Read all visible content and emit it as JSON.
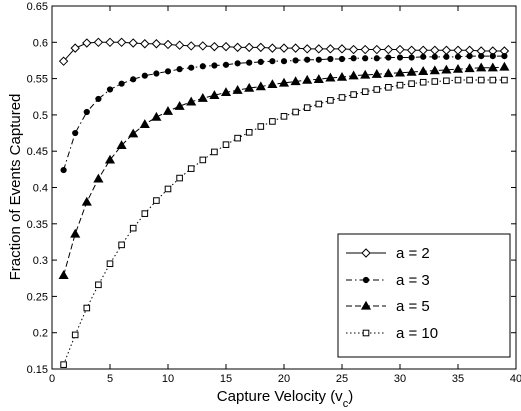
{
  "chart_data": {
    "type": "line",
    "title": "",
    "xlabel": "Capture Velocity (v",
    "xlabel_sub": "c",
    "xlabel_close": ")",
    "ylabel": "Fraction of Events Captured",
    "xlim": [
      0,
      40
    ],
    "ylim": [
      0.15,
      0.65
    ],
    "xticks": [
      0,
      5,
      10,
      15,
      20,
      25,
      30,
      35,
      40
    ],
    "yticks": [
      0.15,
      0.2,
      0.25,
      0.3,
      0.35,
      0.4,
      0.45,
      0.5,
      0.55,
      0.6,
      0.65
    ],
    "grid": false,
    "legend_position": "lower-right",
    "x": [
      1,
      2,
      3,
      4,
      5,
      6,
      7,
      8,
      9,
      10,
      11,
      12,
      13,
      14,
      15,
      16,
      17,
      18,
      19,
      20,
      21,
      22,
      23,
      24,
      25,
      26,
      27,
      28,
      29,
      30,
      31,
      32,
      33,
      34,
      35,
      36,
      37,
      38,
      39
    ],
    "series": [
      {
        "name": "a = 2",
        "marker": "diamond",
        "line": "solid",
        "values": [
          0.574,
          0.592,
          0.599,
          0.6,
          0.6,
          0.6,
          0.599,
          0.598,
          0.598,
          0.597,
          0.596,
          0.595,
          0.595,
          0.594,
          0.594,
          0.593,
          0.593,
          0.593,
          0.592,
          0.592,
          0.592,
          0.591,
          0.591,
          0.591,
          0.591,
          0.59,
          0.59,
          0.59,
          0.59,
          0.59,
          0.589,
          0.589,
          0.589,
          0.589,
          0.589,
          0.589,
          0.588,
          0.588,
          0.588
        ]
      },
      {
        "name": "a = 3",
        "marker": "circle",
        "line": "dashdot",
        "values": [
          0.424,
          0.475,
          0.504,
          0.522,
          0.535,
          0.543,
          0.549,
          0.554,
          0.557,
          0.56,
          0.563,
          0.565,
          0.567,
          0.568,
          0.569,
          0.571,
          0.572,
          0.573,
          0.574,
          0.574,
          0.575,
          0.576,
          0.576,
          0.577,
          0.577,
          0.578,
          0.578,
          0.578,
          0.579,
          0.579,
          0.579,
          0.58,
          0.58,
          0.58,
          0.58,
          0.581,
          0.581,
          0.581,
          0.581
        ]
      },
      {
        "name": "a = 5",
        "marker": "triangle",
        "line": "dashed",
        "values": [
          0.279,
          0.336,
          0.38,
          0.412,
          0.438,
          0.458,
          0.474,
          0.487,
          0.497,
          0.505,
          0.512,
          0.518,
          0.523,
          0.527,
          0.531,
          0.534,
          0.537,
          0.539,
          0.542,
          0.544,
          0.546,
          0.548,
          0.549,
          0.551,
          0.552,
          0.554,
          0.555,
          0.556,
          0.557,
          0.558,
          0.559,
          0.56,
          0.561,
          0.562,
          0.563,
          0.564,
          0.565,
          0.565,
          0.566
        ]
      },
      {
        "name": "a = 10",
        "marker": "square",
        "line": "dotted",
        "values": [
          0.156,
          0.197,
          0.234,
          0.266,
          0.295,
          0.321,
          0.344,
          0.364,
          0.382,
          0.398,
          0.413,
          0.426,
          0.438,
          0.449,
          0.459,
          0.468,
          0.476,
          0.484,
          0.491,
          0.498,
          0.504,
          0.51,
          0.515,
          0.52,
          0.524,
          0.528,
          0.532,
          0.535,
          0.538,
          0.541,
          0.543,
          0.545,
          0.546,
          0.547,
          0.548,
          0.548,
          0.548,
          0.548,
          0.548
        ]
      }
    ]
  }
}
